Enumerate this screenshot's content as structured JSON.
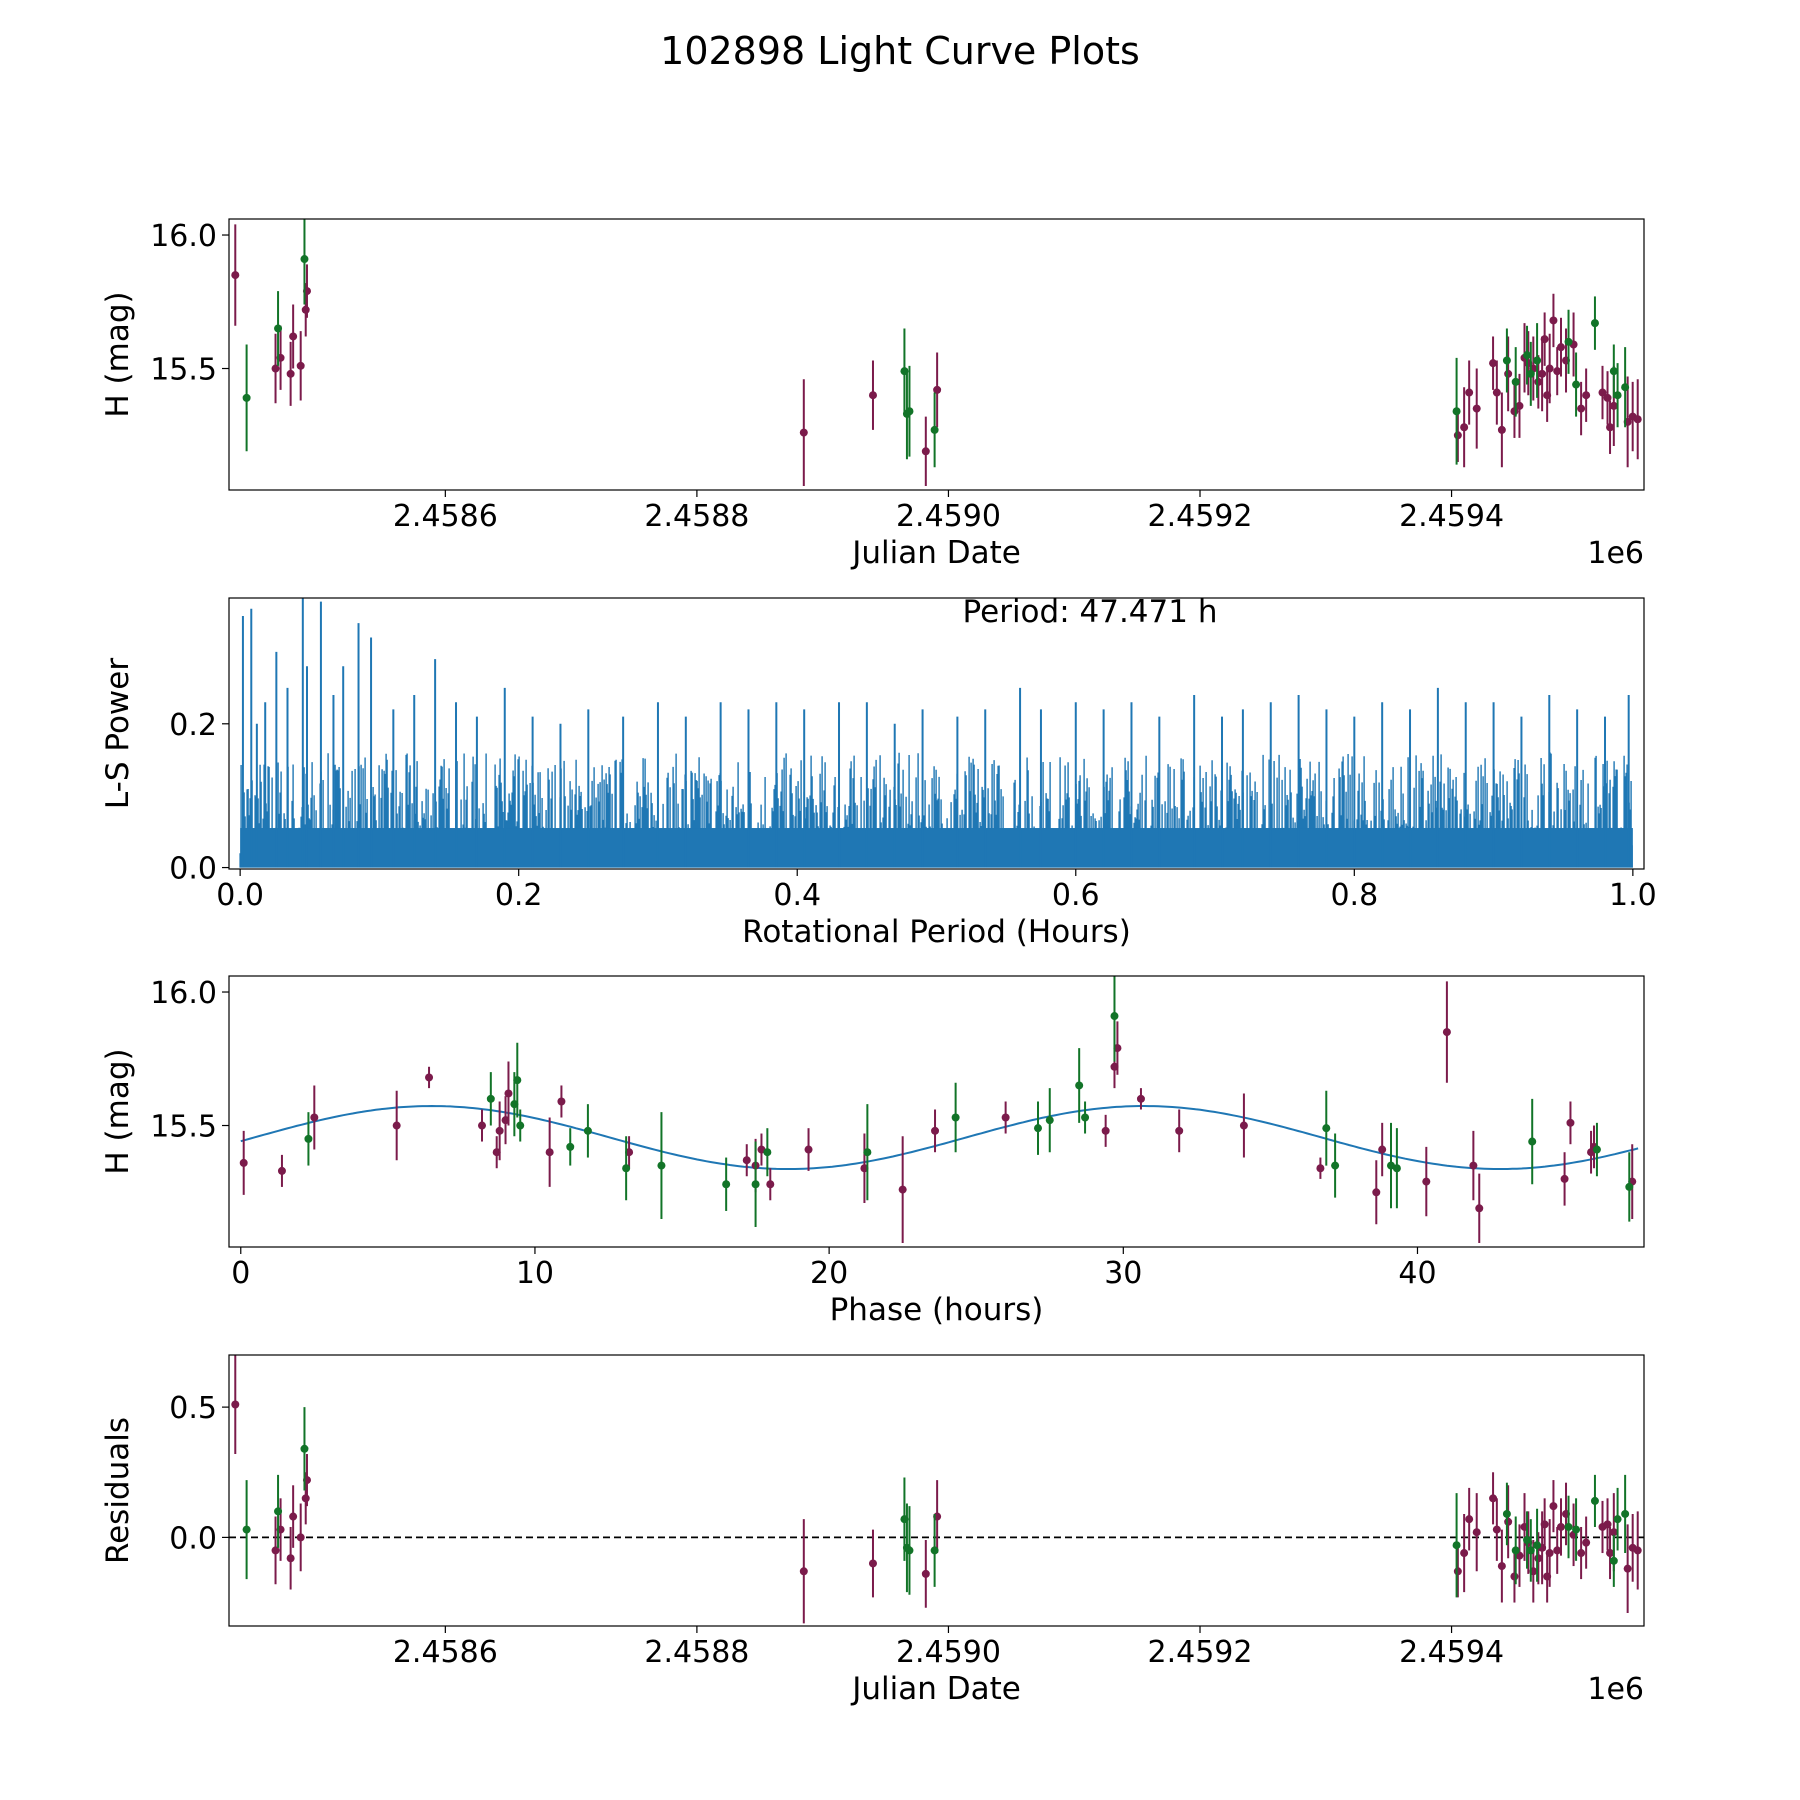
{
  "figure": {
    "title": "102898 Light Curve Plots",
    "colors": {
      "magenta": "#7b1b4b",
      "green": "#127428",
      "blue": "#1f77b4",
      "axis": "#000000"
    }
  },
  "chart_data": [
    {
      "id": "p1",
      "type": "scatter",
      "title": "",
      "xlabel": "Julian Date",
      "ylabel": "H (mag)",
      "xlim": [
        2458428,
        2459553
      ],
      "ylim": [
        15.045,
        16.06
      ],
      "xticks": [
        2458600,
        2458800,
        2459000,
        2459200,
        2459400
      ],
      "xtick_labels": [
        "2.4586",
        "2.4588",
        "2.4590",
        "2.4592",
        "2.4594"
      ],
      "yticks": [
        15.5,
        16.0
      ],
      "ytick_labels": [
        "15.5",
        "16.0"
      ],
      "offset_label": "1e6",
      "series": [
        {
          "name": "magenta",
          "color": "#7b1b4b",
          "x": [
            2458433,
            2458465,
            2458469,
            2458477,
            2458479,
            2458485,
            2458489,
            2458490,
            2458885,
            2458940,
            2458982,
            2458991,
            2459405,
            2459410,
            2459414,
            2459420,
            2459433,
            2459436,
            2459440,
            2459445,
            2459450,
            2459454,
            2459458,
            2459461,
            2459465,
            2459469,
            2459472,
            2459474,
            2459476,
            2459478,
            2459481,
            2459484,
            2459487,
            2459491,
            2459497,
            2459503,
            2459507,
            2459520,
            2459524,
            2459526,
            2459529,
            2459540,
            2459544,
            2459548
          ],
          "y": [
            15.85,
            15.5,
            15.54,
            15.48,
            15.62,
            15.51,
            15.72,
            15.79,
            15.26,
            15.4,
            15.19,
            15.42,
            15.25,
            15.28,
            15.41,
            15.35,
            15.52,
            15.41,
            15.27,
            15.48,
            15.34,
            15.36,
            15.54,
            15.52,
            15.5,
            15.45,
            15.48,
            15.61,
            15.4,
            15.5,
            15.68,
            15.49,
            15.58,
            15.53,
            15.59,
            15.35,
            15.4,
            15.41,
            15.39,
            15.28,
            15.36,
            15.3,
            15.32,
            15.31
          ],
          "err": [
            0.19,
            0.13,
            0.12,
            0.12,
            0.12,
            0.13,
            0.1,
            0.1,
            0.2,
            0.13,
            0.13,
            0.14,
            0.1,
            0.15,
            0.12,
            0.15,
            0.1,
            0.12,
            0.14,
            0.14,
            0.1,
            0.12,
            0.13,
            0.12,
            0.12,
            0.1,
            0.14,
            0.1,
            0.1,
            0.13,
            0.1,
            0.09,
            0.11,
            0.12,
            0.12,
            0.1,
            0.1,
            0.1,
            0.1,
            0.1,
            0.15,
            0.17,
            0.13,
            0.15
          ]
        },
        {
          "name": "green",
          "color": "#127428",
          "x": [
            2458442,
            2458467,
            2458488,
            2458965,
            2458967,
            2458969,
            2458989,
            2459404,
            2459444,
            2459451,
            2459460,
            2459463,
            2459468,
            2459493,
            2459499,
            2459514,
            2459529,
            2459532,
            2459538
          ],
          "y": [
            15.39,
            15.65,
            15.91,
            15.49,
            15.33,
            15.34,
            15.27,
            15.34,
            15.53,
            15.45,
            15.55,
            15.48,
            15.53,
            15.6,
            15.44,
            15.67,
            15.49,
            15.4,
            15.43
          ],
          "err": [
            0.2,
            0.14,
            0.17,
            0.16,
            0.17,
            0.17,
            0.14,
            0.2,
            0.12,
            0.13,
            0.11,
            0.12,
            0.14,
            0.12,
            0.12,
            0.1,
            0.1,
            0.12,
            0.15
          ]
        }
      ]
    },
    {
      "id": "p2",
      "type": "line",
      "title": "",
      "xlabel": "Rotational Period (Hours)",
      "ylabel": "L-S Power",
      "xlim": [
        -0.008,
        1.008
      ],
      "ylim": [
        -0.002,
        0.375
      ],
      "xticks": [
        0,
        0.2,
        0.4,
        0.6,
        0.8,
        1.0
      ],
      "xtick_labels": [
        "0.0",
        "0.2",
        "0.4",
        "0.6",
        "0.8",
        "1.0"
      ],
      "yticks": [
        0,
        0.2
      ],
      "ytick_labels": [
        "0.0",
        "0.2"
      ],
      "annotation": "Period: 47.471 h",
      "series": [
        {
          "name": "L-S power",
          "color": "#1f77b4",
          "x": [
            0.002,
            0.008,
            0.012,
            0.018,
            0.026,
            0.034,
            0.045,
            0.048,
            0.058,
            0.067,
            0.074,
            0.085,
            0.094,
            0.11,
            0.125,
            0.14,
            0.155,
            0.17,
            0.19,
            0.21,
            0.23,
            0.25,
            0.275,
            0.3,
            0.32,
            0.345,
            0.365,
            0.385,
            0.405,
            0.43,
            0.45,
            0.47,
            0.49,
            0.515,
            0.535,
            0.56,
            0.575,
            0.6,
            0.62,
            0.64,
            0.66,
            0.685,
            0.705,
            0.72,
            0.74,
            0.76,
            0.78,
            0.8,
            0.82,
            0.84,
            0.86,
            0.88,
            0.9,
            0.92,
            0.94,
            0.96,
            0.98,
            0.997
          ],
          "y": [
            0.35,
            0.36,
            0.2,
            0.23,
            0.3,
            0.25,
            0.38,
            0.28,
            0.37,
            0.24,
            0.28,
            0.34,
            0.32,
            0.22,
            0.24,
            0.29,
            0.23,
            0.21,
            0.25,
            0.21,
            0.2,
            0.22,
            0.21,
            0.23,
            0.21,
            0.23,
            0.22,
            0.23,
            0.22,
            0.23,
            0.23,
            0.2,
            0.22,
            0.21,
            0.22,
            0.25,
            0.22,
            0.23,
            0.22,
            0.23,
            0.21,
            0.24,
            0.21,
            0.22,
            0.23,
            0.24,
            0.22,
            0.21,
            0.23,
            0.22,
            0.25,
            0.23,
            0.23,
            0.21,
            0.24,
            0.22,
            0.21,
            0.24
          ]
        }
      ]
    },
    {
      "id": "p3",
      "type": "scatter",
      "title": "",
      "xlabel": "Phase (hours)",
      "ylabel": "H (mag)",
      "xlim": [
        -0.4,
        47.7
      ],
      "ylim": [
        15.045,
        16.06
      ],
      "xticks": [
        0,
        10,
        20,
        30,
        40
      ],
      "xtick_labels": [
        "0",
        "10",
        "20",
        "30",
        "40"
      ],
      "yticks": [
        15.5,
        16.0
      ],
      "ytick_labels": [
        "15.5",
        "16.0"
      ],
      "fit": {
        "color": "#1f77b4",
        "mean": 15.455,
        "amplitude": 0.118,
        "period": 24.2,
        "peak": 6.5
      },
      "series": [
        {
          "name": "magenta",
          "color": "#7b1b4b",
          "x": [
            0.1,
            1.4,
            2.5,
            5.3,
            6.4,
            8.2,
            8.7,
            8.8,
            9.0,
            9.1,
            10.5,
            10.9,
            13.2,
            17.2,
            17.5,
            17.7,
            18.0,
            19.3,
            21.2,
            22.5,
            23.6,
            26.0,
            29.4,
            29.7,
            29.8,
            30.6,
            31.9,
            34.1,
            36.7,
            38.6,
            38.8,
            40.3,
            41.0,
            41.9,
            42.1,
            45.0,
            45.2,
            45.9,
            46.0,
            47.3
          ],
          "y": [
            15.36,
            15.33,
            15.53,
            15.5,
            15.68,
            15.5,
            15.4,
            15.48,
            15.52,
            15.62,
            15.4,
            15.59,
            15.4,
            15.37,
            15.35,
            15.41,
            15.28,
            15.41,
            15.34,
            15.26,
            15.48,
            15.53,
            15.48,
            15.72,
            15.79,
            15.6,
            15.48,
            15.5,
            15.34,
            15.25,
            15.41,
            15.29,
            15.85,
            15.35,
            15.19,
            15.3,
            15.51,
            15.4,
            15.42,
            15.29
          ],
          "err": [
            0.12,
            0.06,
            0.12,
            0.13,
            0.04,
            0.06,
            0.06,
            0.11,
            0.09,
            0.12,
            0.13,
            0.06,
            0.06,
            0.06,
            0.1,
            0.06,
            0.06,
            0.08,
            0.13,
            0.2,
            0.08,
            0.06,
            0.06,
            0.08,
            0.1,
            0.04,
            0.08,
            0.12,
            0.04,
            0.12,
            0.1,
            0.13,
            0.19,
            0.13,
            0.13,
            0.1,
            0.08,
            0.08,
            0.08,
            0.14
          ]
        },
        {
          "name": "green",
          "color": "#127428",
          "x": [
            2.3,
            8.5,
            9.3,
            9.4,
            9.5,
            11.2,
            11.8,
            13.1,
            14.3,
            16.5,
            17.5,
            17.9,
            21.3,
            24.3,
            27.1,
            27.5,
            28.5,
            28.7,
            29.7,
            36.9,
            37.2,
            39.1,
            39.3,
            43.9,
            46.1,
            47.2
          ],
          "y": [
            15.45,
            15.6,
            15.58,
            15.67,
            15.5,
            15.42,
            15.48,
            15.34,
            15.35,
            15.28,
            15.28,
            15.4,
            15.4,
            15.53,
            15.49,
            15.52,
            15.65,
            15.53,
            15.91,
            15.49,
            15.35,
            15.35,
            15.34,
            15.44,
            15.41,
            15.27
          ],
          "err": [
            0.1,
            0.1,
            0.12,
            0.14,
            0.06,
            0.07,
            0.1,
            0.12,
            0.2,
            0.1,
            0.16,
            0.09,
            0.18,
            0.13,
            0.1,
            0.12,
            0.14,
            0.06,
            0.17,
            0.14,
            0.12,
            0.16,
            0.15,
            0.16,
            0.1,
            0.13
          ]
        }
      ]
    },
    {
      "id": "p4",
      "type": "scatter",
      "title": "",
      "xlabel": "Julian Date",
      "ylabel": "Residuals",
      "xlim": [
        2458428,
        2459553
      ],
      "ylim": [
        -0.34,
        0.7
      ],
      "xticks": [
        2458600,
        2458800,
        2459000,
        2459200,
        2459400
      ],
      "xtick_labels": [
        "2.4586",
        "2.4588",
        "2.4590",
        "2.4592",
        "2.4594"
      ],
      "yticks": [
        0,
        0.5
      ],
      "ytick_labels": [
        "0.0",
        "0.5"
      ],
      "offset_label": "1e6",
      "hline": 0,
      "series": [
        {
          "name": "magenta",
          "color": "#7b1b4b",
          "x": [
            2458433,
            2458465,
            2458469,
            2458477,
            2458479,
            2458485,
            2458489,
            2458490,
            2458885,
            2458940,
            2458982,
            2458991,
            2459405,
            2459410,
            2459414,
            2459420,
            2459433,
            2459436,
            2459440,
            2459445,
            2459450,
            2459454,
            2459458,
            2459461,
            2459465,
            2459469,
            2459472,
            2459474,
            2459476,
            2459478,
            2459481,
            2459484,
            2459487,
            2459491,
            2459497,
            2459503,
            2459507,
            2459520,
            2459524,
            2459526,
            2459529,
            2459540,
            2459544,
            2459548
          ],
          "y": [
            0.51,
            -0.05,
            0.03,
            -0.08,
            0.08,
            0.0,
            0.15,
            0.22,
            -0.13,
            -0.1,
            -0.14,
            0.08,
            -0.13,
            -0.06,
            0.07,
            0.02,
            0.15,
            0.03,
            -0.11,
            0.06,
            -0.15,
            -0.07,
            0.04,
            -0.02,
            -0.13,
            -0.08,
            -0.04,
            0.05,
            -0.15,
            -0.06,
            0.12,
            -0.05,
            0.04,
            0.09,
            0.01,
            -0.06,
            -0.02,
            0.04,
            0.05,
            -0.06,
            0.02,
            -0.12,
            -0.04,
            -0.05
          ],
          "err": [
            0.19,
            0.13,
            0.12,
            0.12,
            0.12,
            0.13,
            0.1,
            0.1,
            0.2,
            0.13,
            0.13,
            0.14,
            0.1,
            0.15,
            0.12,
            0.15,
            0.1,
            0.12,
            0.14,
            0.14,
            0.1,
            0.12,
            0.13,
            0.12,
            0.12,
            0.1,
            0.14,
            0.1,
            0.1,
            0.13,
            0.1,
            0.09,
            0.11,
            0.12,
            0.12,
            0.1,
            0.1,
            0.1,
            0.1,
            0.1,
            0.15,
            0.17,
            0.13,
            0.15
          ]
        },
        {
          "name": "green",
          "color": "#127428",
          "x": [
            2458442,
            2458467,
            2458488,
            2458965,
            2458967,
            2458969,
            2458989,
            2459404,
            2459444,
            2459451,
            2459460,
            2459463,
            2459468,
            2459493,
            2459499,
            2459514,
            2459529,
            2459532,
            2459538
          ],
          "y": [
            0.03,
            0.1,
            0.34,
            0.07,
            -0.04,
            -0.05,
            -0.05,
            -0.03,
            0.09,
            -0.05,
            -0.01,
            -0.05,
            -0.03,
            0.04,
            0.03,
            0.14,
            -0.09,
            0.07,
            0.09
          ],
          "err": [
            0.19,
            0.14,
            0.16,
            0.16,
            0.17,
            0.17,
            0.14,
            0.2,
            0.12,
            0.13,
            0.11,
            0.12,
            0.14,
            0.12,
            0.12,
            0.1,
            0.1,
            0.12,
            0.15
          ]
        }
      ]
    }
  ]
}
